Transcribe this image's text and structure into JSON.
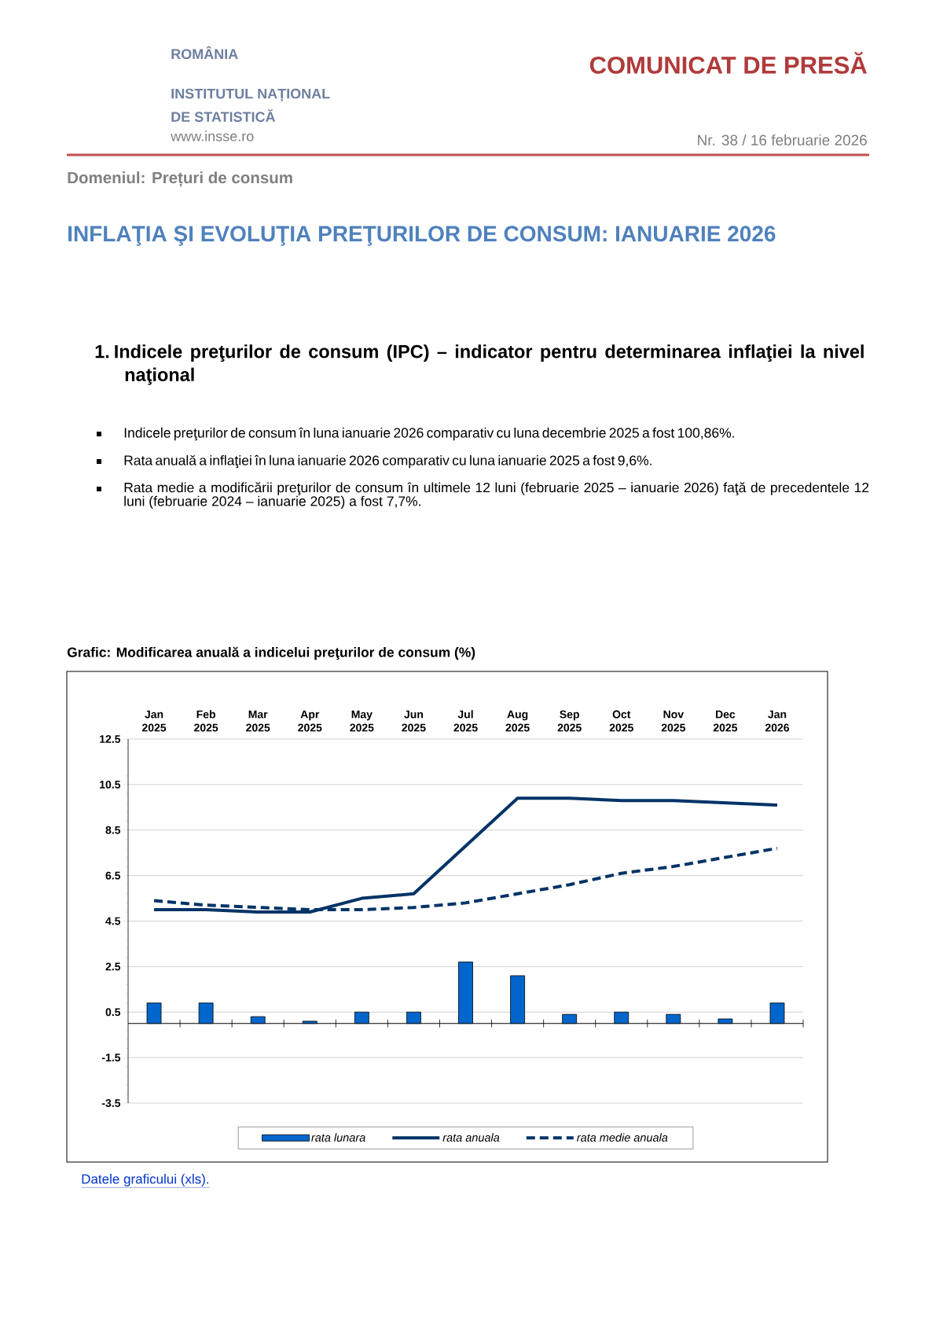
{
  "chart_data": {
    "type": "bar",
    "title": "Grafic: Modificarea anuală a indicelui preţurilor de consum (%)",
    "annotations": [
      "ROMÂNIA",
      "INSTITUTUL NAȚIONAL",
      "DE STATISTICĂ",
      "www.insse.ro",
      "COMUNICAT DE PRESĂ",
      "Nr. 38 / 16  februarie 2026",
      "Domeniul: Prețuri de consum",
      "INFLAŢIA ŞI EVOLUŢIA PREŢURILOR DE CONSUM: IANUARIE 2026",
      "1.  Indicele preţurilor de consum (IPC) – indicator pentru determinarea inflaţiei la nivel naţional",
      "Indicele preţurilor de consum în luna ianuarie 2026 comparativ cu luna decembrie 2025 a fost 100,86%.",
      "Rata anuală a inflaţiei în luna ianuarie 2026 comparativ cu luna ianuarie 2025 a fost 9,6%.",
      "Rata medie a modificării preţurilor de consum în ultimele 12 luni (februarie 2025 – ianuarie 2026) faţă de precedentele 12 luni (februarie 2024 – ianuarie 2025) a fost 7,7%.",
      "Datele graficului (xls)."
    ],
    "categories": [
      "Jan 2025",
      "Feb 2025",
      "Mar 2025",
      "Apr 2025",
      "May 2025",
      "Jun 2025",
      "Jul 2025",
      "Aug 2025",
      "Sep 2025",
      "Oct 2025",
      "Nov 2025",
      "Dec 2025",
      "Jan 2026"
    ],
    "series": [
      {
        "name": "rata lunara",
        "color": "#0066cc",
        "values": [
          0.9,
          0.9,
          0.3,
          0.1,
          0.5,
          0.5,
          2.7,
          2.1,
          0.4,
          0.5,
          0.4,
          0.2,
          0.9
        ]
      },
      {
        "name": "rata anuala",
        "type": "line",
        "color": "#003366",
        "line_style": "solid",
        "values": [
          5.0,
          5.0,
          4.9,
          4.9,
          5.5,
          5.7,
          7.8,
          9.9,
          9.9,
          9.8,
          9.8,
          9.7,
          9.6
        ]
      },
      {
        "name": "rata medie anuala",
        "type": "line",
        "color": "#003366",
        "line_style": "dashed",
        "values": [
          5.4,
          5.2,
          5.1,
          5.0,
          5.0,
          5.1,
          5.3,
          5.7,
          6.1,
          6.6,
          6.9,
          7.3,
          7.7
        ]
      }
    ],
    "ylim": [
      -3.5,
      12.5
    ],
    "yticks": [
      -3.5,
      -1.5,
      0.5,
      2.5,
      4.5,
      6.5,
      8.5,
      10.5,
      12.5
    ],
    "grid": "y",
    "legend": "bottom"
  }
}
